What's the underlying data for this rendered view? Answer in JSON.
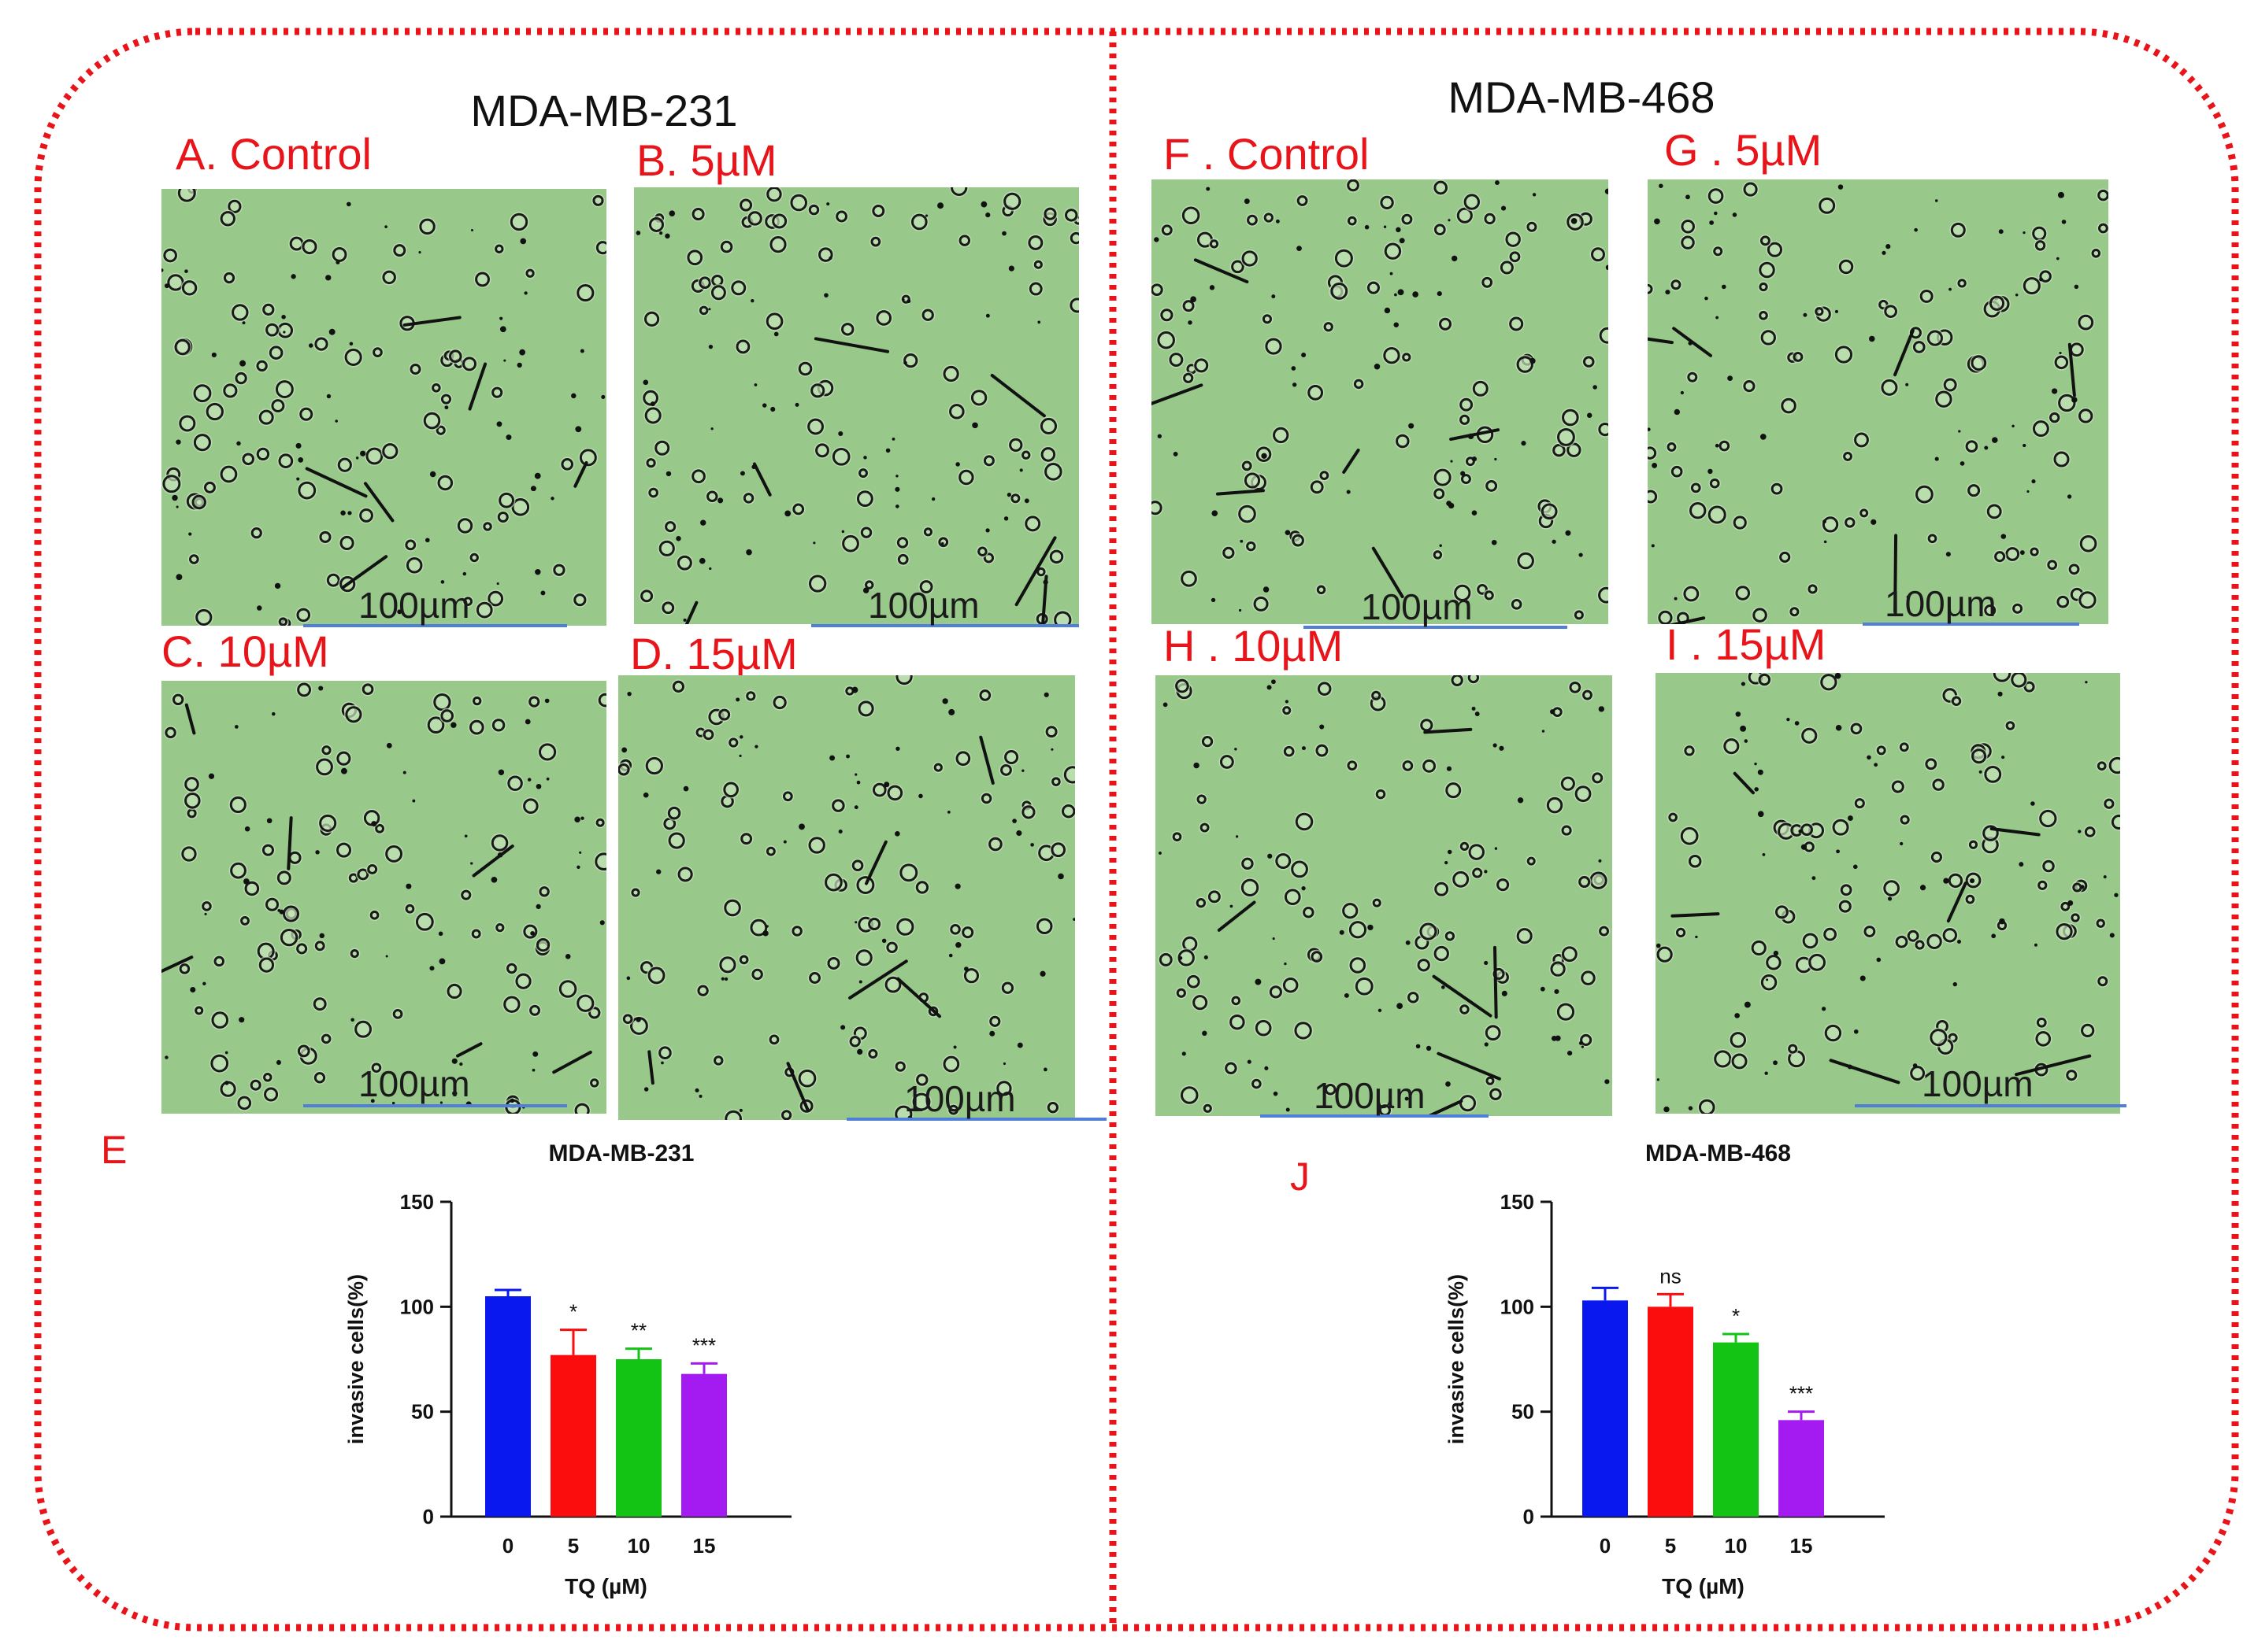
{
  "colors": {
    "frame": "#e8141a",
    "panel_label": "#e8141a",
    "micrograph": "#98c98b",
    "scale_bar": "#4f7fd8",
    "bars": [
      "#0a18f0",
      "#fc0d0d",
      "#14c414",
      "#a31bf0"
    ]
  },
  "left": {
    "title": "MDA-MB-231",
    "panels": [
      {
        "label": "A. Control",
        "scale": "100µm"
      },
      {
        "label": "B. 5µM",
        "scale": "100µm"
      },
      {
        "label": "C. 10µM",
        "scale": "100µm"
      },
      {
        "label": "D. 15µM",
        "scale": "100µm"
      }
    ],
    "chart_letter": "E"
  },
  "right": {
    "title": "MDA-MB-468",
    "panels": [
      {
        "label": "F . Control",
        "scale": "100µm"
      },
      {
        "label": "G . 5µM",
        "scale": "100µm"
      },
      {
        "label": "H . 10µM",
        "scale": "100µm"
      },
      {
        "label": "I . 15µM",
        "scale": "100µm"
      }
    ],
    "chart_letter": "J"
  },
  "chart_data": [
    {
      "type": "bar",
      "title": "MDA-MB-231",
      "xlabel": "TQ (µM)",
      "ylabel": "invasive cells(%)",
      "categories": [
        "0",
        "5",
        "10",
        "15"
      ],
      "values": [
        105,
        77,
        75,
        68
      ],
      "errors": [
        3,
        12,
        5,
        5
      ],
      "significance": [
        "",
        "*",
        "**",
        "***"
      ],
      "ylim": [
        0,
        150
      ],
      "yticks": [
        0,
        50,
        100,
        150
      ]
    },
    {
      "type": "bar",
      "title": "MDA-MB-468",
      "xlabel": "TQ (µM)",
      "ylabel": "invasive cells(%)",
      "categories": [
        "0",
        "5",
        "10",
        "15"
      ],
      "values": [
        103,
        100,
        83,
        46
      ],
      "errors": [
        6,
        6,
        4,
        4
      ],
      "significance": [
        "",
        "ns",
        "*",
        "***"
      ],
      "ylim": [
        0,
        150
      ],
      "yticks": [
        0,
        50,
        100,
        150
      ]
    }
  ]
}
